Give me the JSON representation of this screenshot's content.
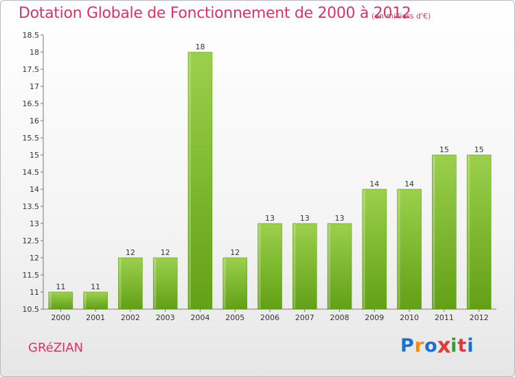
{
  "header": {
    "title": "Dotation Globale de Fonctionnement de 2000 à 2012",
    "subtitle": "(en milliers d'€)"
  },
  "footer": {
    "commune": "GRéZIAN",
    "logo_letters": [
      "P",
      "r",
      "o",
      "x",
      "i",
      "t",
      "i"
    ]
  },
  "colors": {
    "title": "#d6336c",
    "bar_top": "#9bd04c",
    "bar_bottom": "#62a015",
    "logo": [
      "#1f6fd1",
      "#f08a12",
      "#1f6fd1",
      "#e23a3a",
      "#2e9e3a",
      "#e23a3a",
      "#1f6fd1"
    ]
  },
  "chart_data": {
    "type": "bar",
    "categories": [
      "2000",
      "2001",
      "2002",
      "2003",
      "2004",
      "2005",
      "2006",
      "2007",
      "2008",
      "2009",
      "2010",
      "2011",
      "2012"
    ],
    "values": [
      11,
      11,
      12,
      12,
      18,
      12,
      13,
      13,
      13,
      14,
      14,
      15,
      15
    ],
    "data_labels": [
      "11",
      "11",
      "12",
      "12",
      "18",
      "12",
      "13",
      "13",
      "13",
      "14",
      "14",
      "15",
      "15"
    ],
    "title": "Dotation Globale de Fonctionnement de 2000 à 2012",
    "subtitle": "(en milliers d'€)",
    "xlabel": "",
    "ylabel": "",
    "ylim": [
      10.5,
      18.5
    ],
    "yticks": [
      10.5,
      11,
      11.5,
      12,
      12.5,
      13,
      13.5,
      14,
      14.5,
      15,
      15.5,
      16,
      16.5,
      17,
      17.5,
      18,
      18.5
    ],
    "ytick_labels": [
      "10.5",
      "11",
      "11.5",
      "12",
      "12.5",
      "13",
      "13.5",
      "14",
      "14.5",
      "15",
      "15.5",
      "16",
      "16.5",
      "17",
      "17.5",
      "18",
      "18.5"
    ],
    "grid": false,
    "legend": "none"
  }
}
